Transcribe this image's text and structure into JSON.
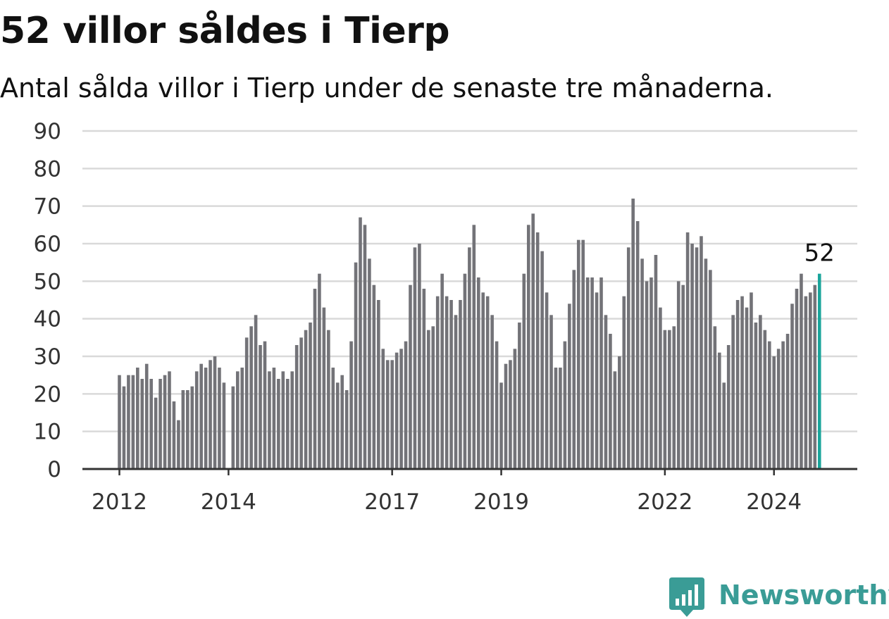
{
  "title": "52 villor såldes i Tierp",
  "subtitle": "Antal sålda villor i Tierp under de senaste tre månaderna.",
  "brand": {
    "name": "Newsworthy",
    "icon": "newsworthy-logo-icon",
    "color": "#3a9c96"
  },
  "colors": {
    "bar": "#737378",
    "highlight": "#1aa59b",
    "grid": "#d9d9d9",
    "axis": "#333333",
    "text": "#333333"
  },
  "chart_data": {
    "type": "bar",
    "title": "52 villor såldes i Tierp",
    "subtitle": "Antal sålda villor i Tierp under de senaste tre månaderna.",
    "xlabel": "",
    "ylabel": "",
    "ylim": [
      0,
      90
    ],
    "yticks": [
      0,
      10,
      20,
      30,
      40,
      50,
      60,
      70,
      80,
      90
    ],
    "xticks": [
      {
        "label": "2012",
        "index": 0
      },
      {
        "label": "2014",
        "index": 24
      },
      {
        "label": "2017",
        "index": 60
      },
      {
        "label": "2019",
        "index": 84
      },
      {
        "label": "2022",
        "index": 120
      },
      {
        "label": "2024",
        "index": 144
      }
    ],
    "grid": true,
    "highlight_last": true,
    "last_value_label": "52",
    "values": [
      25,
      22,
      25,
      25,
      27,
      24,
      28,
      24,
      19,
      24,
      25,
      26,
      18,
      13,
      21,
      21,
      22,
      26,
      28,
      27,
      29,
      30,
      27,
      23,
      0,
      22,
      26,
      27,
      35,
      38,
      41,
      33,
      34,
      26,
      27,
      24,
      26,
      24,
      26,
      33,
      35,
      37,
      39,
      48,
      52,
      43,
      37,
      27,
      23,
      25,
      21,
      34,
      55,
      67,
      65,
      56,
      49,
      45,
      32,
      29,
      29,
      31,
      32,
      34,
      49,
      59,
      60,
      48,
      37,
      38,
      46,
      52,
      46,
      45,
      41,
      45,
      52,
      59,
      65,
      51,
      47,
      46,
      41,
      34,
      23,
      28,
      29,
      32,
      39,
      52,
      65,
      68,
      63,
      58,
      47,
      41,
      27,
      27,
      34,
      44,
      53,
      61,
      61,
      51,
      51,
      47,
      51,
      41,
      36,
      26,
      30,
      46,
      59,
      72,
      66,
      56,
      50,
      51,
      57,
      43,
      37,
      37,
      38,
      50,
      49,
      63,
      60,
      59,
      62,
      56,
      53,
      38,
      31,
      23,
      33,
      41,
      45,
      46,
      43,
      47,
      39,
      41,
      37,
      34,
      30,
      32,
      34,
      36,
      44,
      48,
      52,
      46,
      47,
      49,
      52
    ]
  }
}
